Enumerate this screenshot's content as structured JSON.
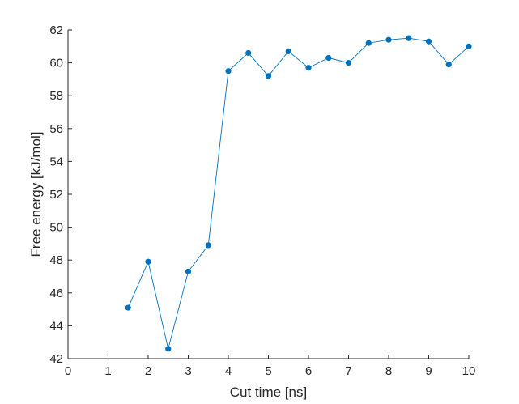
{
  "chart_data": {
    "type": "line",
    "title": "",
    "xlabel": "Cut time [ns]",
    "ylabel": "Free energy [kJ/mol]",
    "xlim": [
      0,
      10
    ],
    "ylim": [
      42,
      62
    ],
    "xticks": [
      0,
      1,
      2,
      3,
      4,
      5,
      6,
      7,
      8,
      9,
      10
    ],
    "yticks": [
      42,
      44,
      46,
      48,
      50,
      52,
      54,
      56,
      58,
      60,
      62
    ],
    "grid": false,
    "legend": "none",
    "series": [
      {
        "color": "#0072BD",
        "marker": "circle",
        "x": [
          1.5,
          2,
          2.5,
          3,
          3.5,
          4,
          4.5,
          5,
          5.5,
          6,
          6.5,
          7,
          7.5,
          8,
          8.5,
          9,
          9.5,
          10
        ],
        "y": [
          45.1,
          47.9,
          42.6,
          47.3,
          48.9,
          59.5,
          60.6,
          59.2,
          60.7,
          59.7,
          60.3,
          60.0,
          61.2,
          61.4,
          61.5,
          61.3,
          59.9,
          61.0
        ]
      }
    ]
  }
}
